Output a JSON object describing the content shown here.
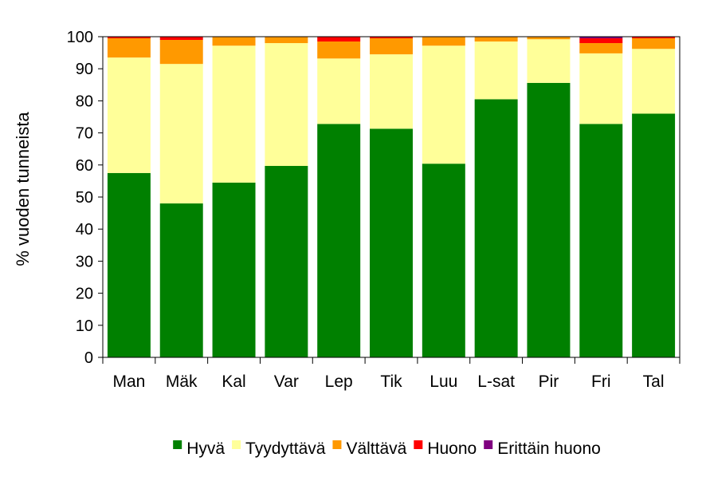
{
  "chart_data": {
    "type": "bar",
    "stacked": true,
    "categories": [
      "Man",
      "Mäk",
      "Kal",
      "Var",
      "Lep",
      "Tik",
      "Luu",
      "L-sat",
      "Pir",
      "Fri",
      "Tal"
    ],
    "series": [
      {
        "name": "Hyvä",
        "color": "#008000",
        "values": [
          57.5,
          48.0,
          54.5,
          59.7,
          72.8,
          71.3,
          60.4,
          80.5,
          85.6,
          72.8,
          76.0
        ]
      },
      {
        "name": "Tyydyttävä",
        "color": "#FFFF99",
        "values": [
          36.0,
          43.5,
          42.7,
          38.3,
          20.4,
          23.2,
          36.8,
          18.0,
          13.6,
          22.0,
          20.2
        ]
      },
      {
        "name": "Välttävä",
        "color": "#FF9900",
        "values": [
          6.0,
          7.5,
          2.8,
          2.0,
          5.3,
          5.0,
          2.8,
          1.5,
          0.8,
          3.2,
          3.3
        ]
      },
      {
        "name": "Huono",
        "color": "#FF0000",
        "values": [
          0.5,
          1.0,
          0.0,
          0.0,
          1.5,
          0.5,
          0.0,
          0.0,
          0.0,
          1.5,
          0.5
        ]
      },
      {
        "name": "Erittäin huono",
        "color": "#800080",
        "values": [
          0.0,
          0.0,
          0.0,
          0.0,
          0.0,
          0.0,
          0.0,
          0.0,
          0.0,
          0.5,
          0.0
        ]
      }
    ],
    "ylabel": "% vuoden tunneista",
    "xlabel": "",
    "ylim": [
      0,
      100
    ],
    "yticks": [
      0,
      10,
      20,
      30,
      40,
      50,
      60,
      70,
      80,
      90,
      100
    ],
    "grid": false,
    "legend_position": "bottom"
  }
}
